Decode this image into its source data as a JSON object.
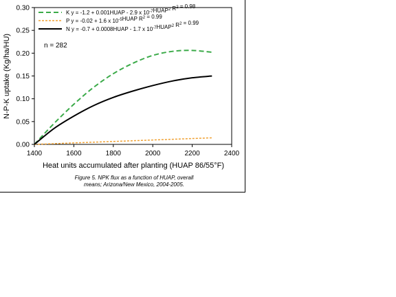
{
  "chart_data": {
    "type": "line",
    "title": "",
    "xlabel": "Heat units accumulated after planting (HUAP 86/55°F)",
    "ylabel": "N-P-K uptake (Kg/ha/HU)",
    "xlim": [
      1400,
      2400
    ],
    "ylim": [
      0,
      0.3
    ],
    "xticks": [
      "1400",
      "1600",
      "1800",
      "2000",
      "2200",
      "2400"
    ],
    "yticks": [
      "0.00",
      "0.05",
      "0.10",
      "0.15",
      "0.20",
      "0.25",
      "0.30"
    ],
    "grid": false,
    "legend_position": "top-left",
    "annotation": "n = 282",
    "x": [
      1400,
      1500,
      1600,
      1700,
      1800,
      1900,
      2000,
      2100,
      2200,
      2300
    ],
    "series": [
      {
        "key": "K",
        "legend": "K y = -1.2 + 0.001HUAP - 2.9 x 10",
        "legend_exp1": "-7",
        "legend_mid": "HUAP",
        "legend_exp2": "2",
        "legend_end": " R",
        "legend_exp3": "2",
        "legend_tail": " = 0.98",
        "color": "#3aaa48",
        "style": "dashed",
        "values": [
          0.0,
          0.046,
          0.088,
          0.125,
          0.155,
          0.178,
          0.195,
          0.204,
          0.206,
          0.202
        ]
      },
      {
        "key": "P",
        "legend": "P y = -0.02 + 1.6 x 10",
        "legend_exp1": "-5",
        "legend_mid": "HUAP R",
        "legend_exp2": "2",
        "legend_end": " = 0.99",
        "legend_exp3": "",
        "legend_tail": "",
        "color": "#f0a030",
        "style": "dotted",
        "values": [
          0.0,
          0.0016,
          0.0032,
          0.0048,
          0.0064,
          0.008,
          0.0096,
          0.0112,
          0.0128,
          0.0144
        ]
      },
      {
        "key": "N",
        "legend": "N y = -0.7 + 0.0008HUAP - 1.7 x 10",
        "legend_exp1": "-7",
        "legend_mid": "HUAP",
        "legend_exp2": "2",
        "legend_end": " R",
        "legend_exp3": "2",
        "legend_tail": " = 0.99",
        "color": "#000000",
        "style": "solid",
        "values": [
          0.0,
          0.035,
          0.062,
          0.085,
          0.103,
          0.117,
          0.129,
          0.139,
          0.146,
          0.15
        ]
      }
    ]
  },
  "caption": {
    "line1": "Figure 5. NPK flux as a function of HUAP, overall",
    "line2": "means; Arizona/New Mexico, 2004-2005."
  }
}
